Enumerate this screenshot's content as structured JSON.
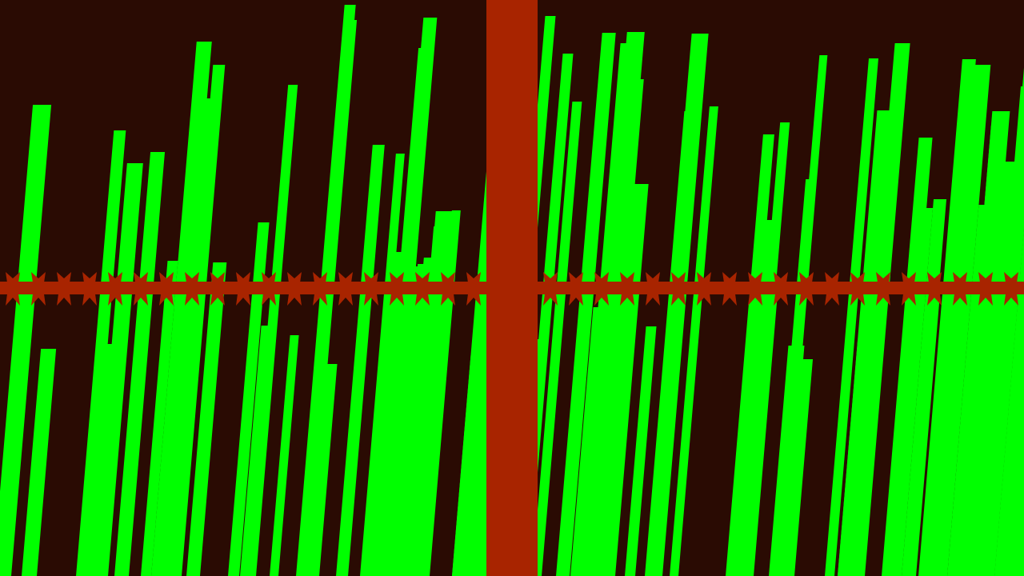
{
  "scene": {
    "background_color": "#2a0b03",
    "stripe_color": "#00ff00",
    "pillar_color": "#a82400",
    "rail_color": "#a82400",
    "rail_spike_count": 40,
    "stripe_count": 80
  }
}
